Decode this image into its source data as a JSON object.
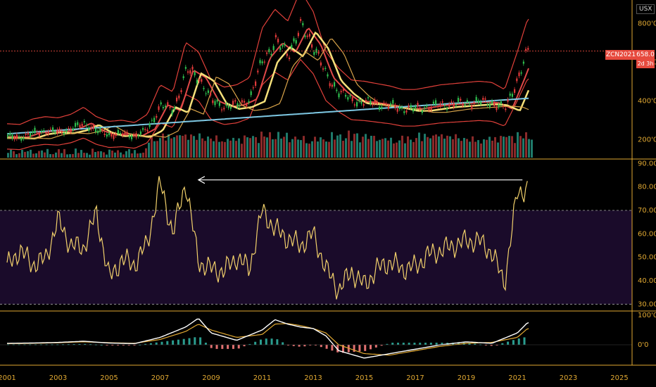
{
  "currency": "USX",
  "symbol": "ZCN2021",
  "last_price": "658.0",
  "countdown": "2d 3h",
  "colors": {
    "axis": "#e0a832",
    "up_candle": "#2ebd4e",
    "down_candle": "#e03a3a",
    "badge": "#e74a3e",
    "rsi": "#f2d16b",
    "rsi_band": "#1a0b2a",
    "sma_blue": "#7ec8e3",
    "bollinger": "#e0403a",
    "macd_line": "#ffffff",
    "signal_line": "#e0a832"
  },
  "chart_data": [
    {
      "type": "candlestick",
      "panel": "price",
      "x_axis": [
        "2001",
        "2003",
        "2005",
        "2007",
        "2009",
        "2011",
        "2013",
        "2015",
        "2017",
        "2019",
        "2021",
        "2023",
        "2025"
      ],
      "y_ticks": [
        "800'0",
        "600'0",
        "400'0",
        "200'0"
      ],
      "ylim": [
        100,
        900
      ],
      "price_series": {
        "x": [
          2001,
          2001.5,
          2002,
          2002.5,
          2003,
          2003.5,
          2004,
          2004.5,
          2005,
          2005.5,
          2006,
          2006.5,
          2007,
          2007.5,
          2008,
          2008.5,
          2009,
          2009.5,
          2010,
          2010.5,
          2011,
          2011.5,
          2012,
          2012.5,
          2013,
          2013.5,
          2014,
          2014.5,
          2015,
          2015.5,
          2016,
          2016.5,
          2017,
          2017.5,
          2018,
          2018.5,
          2019,
          2019.5,
          2020,
          2020.5,
          2021,
          2021.4
        ],
        "values": [
          215,
          212,
          235,
          245,
          240,
          255,
          285,
          245,
          225,
          230,
          220,
          255,
          380,
          350,
          560,
          520,
          400,
          370,
          380,
          410,
          620,
          700,
          650,
          780,
          690,
          520,
          450,
          400,
          395,
          385,
          375,
          360,
          360,
          370,
          380,
          385,
          390,
          395,
          390,
          360,
          520,
          658
        ]
      }
    },
    {
      "type": "line",
      "panel": "rsi",
      "y_ticks": [
        "90.00",
        "80.00",
        "70.00",
        "60.00",
        "50.00",
        "40.00",
        "30.00"
      ],
      "ylim": [
        28,
        91
      ],
      "bands": [
        30,
        70
      ],
      "series": [
        {
          "x": [
            2001,
            2001.5,
            2002,
            2002.5,
            2003,
            2003.5,
            2004,
            2004.5,
            2005,
            2005.5,
            2006,
            2006.5,
            2007,
            2007.5,
            2008,
            2008.5,
            2009,
            2009.5,
            2010,
            2010.5,
            2011,
            2011.5,
            2012,
            2012.5,
            2013,
            2013.5,
            2014,
            2014.5,
            2015,
            2015.5,
            2016,
            2016.5,
            2017,
            2017.5,
            2018,
            2018.5,
            2019,
            2019.5,
            2020,
            2020.5,
            2021,
            2021.4
          ],
          "values": [
            46,
            53,
            47,
            49,
            66,
            55,
            54,
            69,
            41,
            49,
            47,
            56,
            82,
            60,
            82,
            48,
            45,
            44,
            50,
            45,
            70,
            62,
            58,
            55,
            60,
            45,
            36,
            44,
            38,
            45,
            48,
            45,
            46,
            51,
            53,
            55,
            57,
            57,
            52,
            39,
            78,
            79
          ]
        }
      ],
      "annotations": [
        "arrow from 2021.2 at ~83 back to 2008.5 at ~83"
      ]
    },
    {
      "type": "line",
      "panel": "macd",
      "y_ticks": [
        "100'0",
        "0'0"
      ],
      "ylim": [
        -80,
        110
      ],
      "series": [
        {
          "x": [
            2001,
            2002,
            2003,
            2004,
            2005,
            2006,
            2007,
            2008,
            2008.5,
            2009,
            2010,
            2011,
            2011.5,
            2012,
            2012.5,
            2013,
            2013.5,
            2014,
            2015,
            2016,
            2017,
            2018,
            2019,
            2020,
            2021,
            2021.4
          ],
          "values": [
            5,
            6,
            8,
            12,
            6,
            4,
            25,
            60,
            90,
            40,
            15,
            50,
            85,
            70,
            60,
            55,
            30,
            -20,
            -45,
            -30,
            -15,
            0,
            10,
            5,
            40,
            75
          ]
        },
        {
          "x": [
            2001,
            2002,
            2003,
            2004,
            2005,
            2006,
            2007,
            2008,
            2008.5,
            2009,
            2010,
            2011,
            2011.5,
            2012,
            2012.5,
            2013,
            2013.5,
            2014,
            2015,
            2016,
            2017,
            2018,
            2019,
            2020,
            2021,
            2021.4
          ],
          "values": [
            4,
            5,
            7,
            10,
            7,
            5,
            18,
            45,
            70,
            50,
            25,
            35,
            70,
            72,
            65,
            55,
            40,
            0,
            -30,
            -35,
            -20,
            -5,
            5,
            8,
            25,
            55
          ]
        }
      ],
      "histogram_bar_count": 95
    }
  ]
}
